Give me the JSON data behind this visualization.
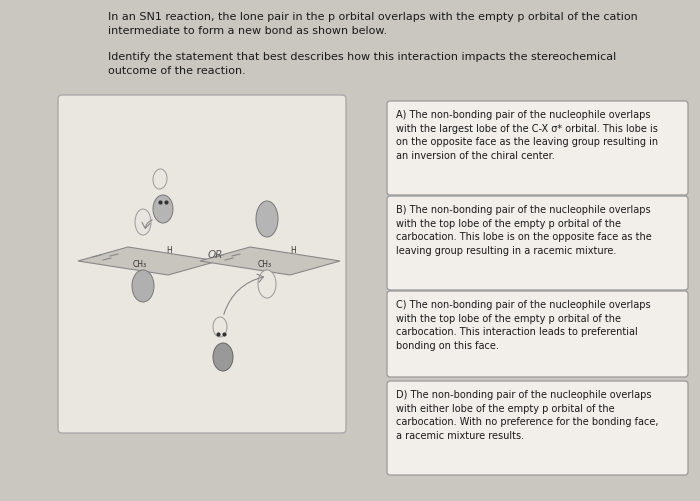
{
  "bg_color": "#cac7c1",
  "title_line1": "In an SN1 reaction, the lone pair in the p orbital overlaps with the empty p orbital of the cation",
  "title_line2": "intermediate to form a new bond as shown below.",
  "subtitle_line1": "Identify the statement that best describes how this interaction impacts the stereochemical",
  "subtitle_line2": "outcome of the reaction.",
  "option_A": "A) The non-bonding pair of the nucleophile overlaps\nwith the largest lobe of the C-X σ* orbital. This lobe is\non the opposite face as the leaving group resulting in\nan inversion of the chiral center.",
  "option_B": "B) The non-bonding pair of the nucleophile overlaps\nwith the top lobe of the empty p orbital of the\ncarbocation. This lobe is on the opposite face as the\nleaving group resulting in a racemic mixture.",
  "option_C": "C) The non-bonding pair of the nucleophile overlaps\nwith the top lobe of the empty p orbital of the\ncarbocation. This interaction leads to preferential\nbonding on this face.",
  "option_D": "D) The non-bonding pair of the nucleophile overlaps\nwith either lobe of the empty p orbital of the\ncarbocation. With no preference for the bonding face,\na racemic mixture results.",
  "box_fill": "#f2efea",
  "box_edge": "#999999",
  "text_color": "#1a1a1a",
  "diag_fill": "#eae6e0",
  "diag_edge": "#aaaaaa",
  "orbital_light": "#c8c8c8",
  "orbital_dark": "#888888",
  "orbital_edge": "#666666"
}
